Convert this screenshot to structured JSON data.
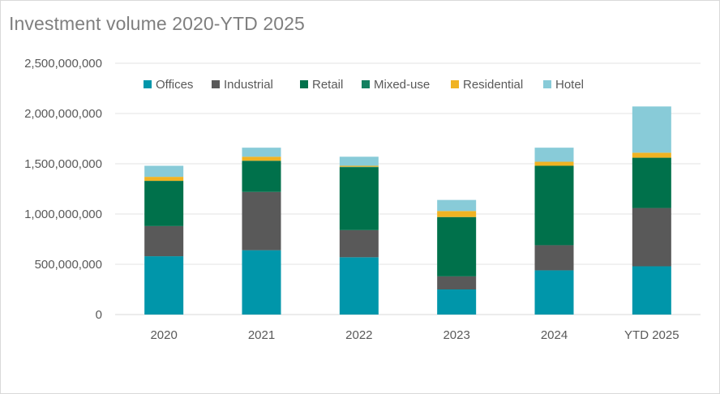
{
  "chart_data": {
    "type": "bar",
    "stacked": true,
    "title": "Investment volume 2020-YTD 2025",
    "categories": [
      "2020",
      "2021",
      "2022",
      "2023",
      "2024",
      "YTD 2025"
    ],
    "ylim": [
      0,
      2500000000
    ],
    "yticks": [
      0,
      500000000,
      1000000000,
      1500000000,
      2000000000,
      2500000000
    ],
    "ytick_labels": [
      "0",
      "500,000,000",
      "1,000,000,000",
      "1,500,000,000",
      "2,000,000,000",
      "2,500,000,000"
    ],
    "grid": true,
    "legend_position": "top",
    "series": [
      {
        "name": "Offices",
        "color": "#0096aa",
        "values": [
          580000000,
          640000000,
          570000000,
          250000000,
          440000000,
          480000000
        ]
      },
      {
        "name": "Industrial",
        "color": "#595959",
        "values": [
          300000000,
          580000000,
          270000000,
          130000000,
          250000000,
          580000000
        ]
      },
      {
        "name": "Retail",
        "color": "#00714b",
        "values": [
          450000000,
          310000000,
          620000000,
          590000000,
          790000000,
          500000000
        ]
      },
      {
        "name": "Mixed-use",
        "color": "#138060",
        "values": [
          0,
          0,
          10000000,
          0,
          0,
          0
        ]
      },
      {
        "name": "Residential",
        "color": "#f0b323",
        "values": [
          40000000,
          40000000,
          10000000,
          60000000,
          40000000,
          50000000
        ]
      },
      {
        "name": "Hotel",
        "color": "#88cbd8",
        "values": [
          110000000,
          90000000,
          90000000,
          110000000,
          140000000,
          460000000
        ]
      }
    ]
  }
}
